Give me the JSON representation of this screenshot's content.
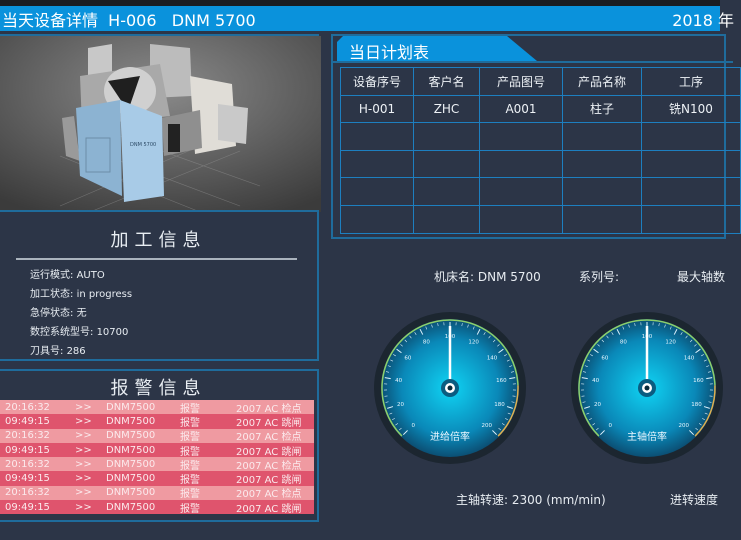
{
  "header": {
    "title": "当天设备详情  H-006   DNM 5700",
    "date": "2018 年"
  },
  "machine_image": {
    "label": "DNM 5700"
  },
  "info": {
    "title": "加工信息",
    "items": [
      {
        "label": "运行模式:",
        "value": "AUTO"
      },
      {
        "label": "加工状态:",
        "value": "in progress"
      },
      {
        "label": "急停状态:",
        "value": "无"
      },
      {
        "label": "数控系统型号:",
        "value": "10700"
      },
      {
        "label": "刀具号:",
        "value": "286"
      }
    ]
  },
  "alarm": {
    "title": "报警信息",
    "rows": [
      {
        "time": "20:16:32",
        "arrow": ">>",
        "machine": "DNM7500",
        "type": "报警",
        "msg": "2007  AC 检点"
      },
      {
        "time": "09:49:15",
        "arrow": ">>",
        "machine": "DNM7500",
        "type": "报警",
        "msg": "2007  AC 跳闸"
      },
      {
        "time": "20:16:32",
        "arrow": ">>",
        "machine": "DNM7500",
        "type": "报警",
        "msg": "2007  AC 检点"
      },
      {
        "time": "09:49:15",
        "arrow": ">>",
        "machine": "DNM7500",
        "type": "报警",
        "msg": "2007  AC 跳闸"
      },
      {
        "time": "20:16:32",
        "arrow": ">>",
        "machine": "DNM7500",
        "type": "报警",
        "msg": "2007  AC 检点"
      },
      {
        "time": "09:49:15",
        "arrow": ">>",
        "machine": "DNM7500",
        "type": "报警",
        "msg": "2007  AC 跳闸"
      },
      {
        "time": "20:16:32",
        "arrow": ">>",
        "machine": "DNM7500",
        "type": "报警",
        "msg": "2007  AC 检点"
      },
      {
        "time": "09:49:15",
        "arrow": ">>",
        "machine": "DNM7500",
        "type": "报警",
        "msg": "2007  AC 跳闸"
      }
    ]
  },
  "plan": {
    "tab": "当日计划表",
    "columns": [
      "设备序号",
      "客户名",
      "产品图号",
      "产品名称",
      "工序"
    ],
    "rows": [
      [
        "H-001",
        "ZHC",
        "A001",
        "柱子",
        "铣N100"
      ],
      [
        "",
        "",
        "",
        "",
        ""
      ],
      [
        "",
        "",
        "",
        "",
        ""
      ],
      [
        "",
        "",
        "",
        "",
        ""
      ],
      [
        "",
        "",
        "",
        "",
        ""
      ]
    ]
  },
  "details": {
    "machine_name": "机床名: DNM 5700",
    "series": "系列号:",
    "max_axes": "最大轴数",
    "spindle_speed": "主轴转速: 2300 (mm/min)",
    "feed_speed": "进转速度"
  },
  "gauges": [
    {
      "label": "进给倍率",
      "value": 100,
      "min": 0,
      "max": 200,
      "ticks": [
        0,
        20,
        40,
        60,
        80,
        100,
        120,
        140,
        160,
        180,
        200
      ]
    },
    {
      "label": "主轴倍率",
      "value": 100,
      "min": 0,
      "max": 200,
      "ticks": [
        0,
        20,
        40,
        60,
        80,
        100,
        120,
        140,
        160,
        180,
        200
      ]
    }
  ],
  "colors": {
    "accent": "#0a92dc",
    "panel_border": "#1f6c9c",
    "alarm_light": "#ef9aa1",
    "alarm_dark": "#df546d"
  }
}
